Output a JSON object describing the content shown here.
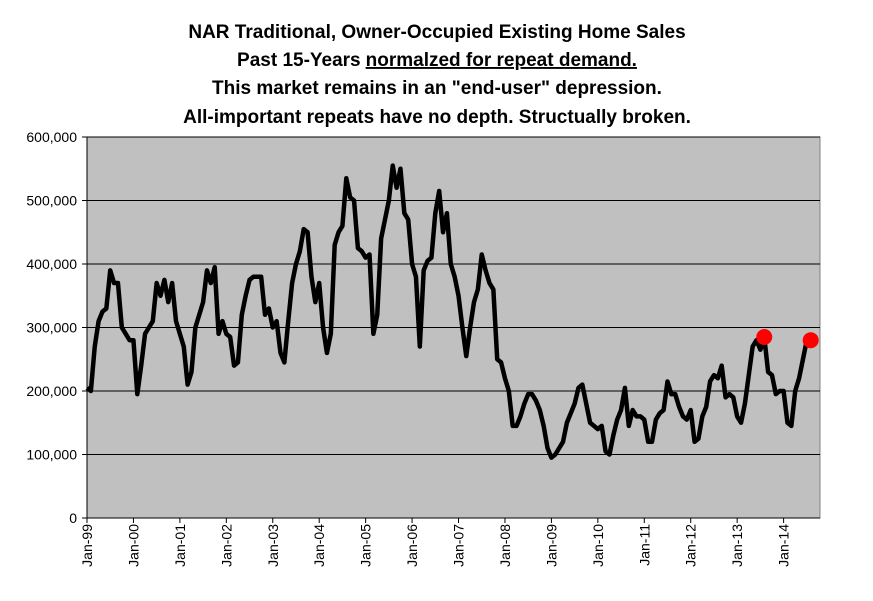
{
  "chart_data": {
    "type": "line",
    "title": [
      "NAR Traditional, Owner-Occupied Existing Home Sales",
      "Past 15-Years",
      "normalzed for repeat demand.",
      "This market remains in an \"end-user\" depression.",
      "All-important repeats have no depth. Structually broken."
    ],
    "categories": [
      "Jan-99",
      null,
      null,
      null,
      null,
      null,
      null,
      null,
      null,
      null,
      null,
      null,
      "Jan-00",
      null,
      null,
      null,
      null,
      null,
      null,
      null,
      null,
      null,
      null,
      null,
      "Jan-01",
      null,
      null,
      null,
      null,
      null,
      null,
      null,
      null,
      null,
      null,
      null,
      "Jan-02",
      null,
      null,
      null,
      null,
      null,
      null,
      null,
      null,
      null,
      null,
      null,
      "Jan-03",
      null,
      null,
      null,
      null,
      null,
      null,
      null,
      null,
      null,
      null,
      null,
      "Jan-04",
      null,
      null,
      null,
      null,
      null,
      null,
      null,
      null,
      null,
      null,
      null,
      "Jan-05",
      null,
      null,
      null,
      null,
      null,
      null,
      null,
      null,
      null,
      null,
      null,
      "Jan-06",
      null,
      null,
      null,
      null,
      null,
      null,
      null,
      null,
      null,
      null,
      null,
      "Jan-07",
      null,
      null,
      null,
      null,
      null,
      null,
      null,
      null,
      null,
      null,
      null,
      "Jan-08",
      null,
      null,
      null,
      null,
      null,
      null,
      null,
      null,
      null,
      null,
      null,
      "Jan-09",
      null,
      null,
      null,
      null,
      null,
      null,
      null,
      null,
      null,
      null,
      null,
      "Jan-10",
      null,
      null,
      null,
      null,
      null,
      null,
      null,
      null,
      null,
      null,
      null,
      "Jan-11",
      null,
      null,
      null,
      null,
      null,
      null,
      null,
      null,
      null,
      null,
      null,
      "Jan-12",
      null,
      null,
      null,
      null,
      null,
      null,
      null,
      null,
      null,
      null,
      null,
      "Jan-13",
      null,
      null,
      null,
      null,
      null,
      null,
      null,
      null,
      null,
      null,
      null,
      "Jan-14",
      null,
      null,
      null,
      null,
      null,
      null,
      null
    ],
    "series": [
      {
        "color": "#000000",
        "line": true,
        "values": [
          205000,
          200000,
          270000,
          310000,
          325000,
          330000,
          390000,
          370000,
          370000,
          300000,
          290000,
          280000,
          280000,
          195000,
          240000,
          290000,
          300000,
          310000,
          370000,
          350000,
          375000,
          340000,
          370000,
          310000,
          290000,
          270000,
          210000,
          230000,
          300000,
          320000,
          340000,
          390000,
          370000,
          395000,
          290000,
          310000,
          290000,
          285000,
          240000,
          245000,
          320000,
          350000,
          375000,
          380000,
          380000,
          380000,
          320000,
          330000,
          300000,
          310000,
          260000,
          245000,
          310000,
          370000,
          400000,
          420000,
          455000,
          450000,
          380000,
          340000,
          370000,
          300000,
          260000,
          290000,
          430000,
          450000,
          460000,
          535000,
          505000,
          500000,
          425000,
          420000,
          410000,
          415000,
          290000,
          320000,
          440000,
          470000,
          500000,
          555000,
          520000,
          550000,
          480000,
          470000,
          400000,
          380000,
          270000,
          390000,
          405000,
          410000,
          480000,
          515000,
          450000,
          480000,
          400000,
          380000,
          350000,
          300000,
          255000,
          300000,
          340000,
          360000,
          415000,
          390000,
          370000,
          360000,
          250000,
          245000,
          220000,
          200000,
          145000,
          145000,
          160000,
          180000,
          195000,
          195000,
          185000,
          170000,
          145000,
          110000,
          95000,
          100000,
          110000,
          120000,
          150000,
          165000,
          180000,
          205000,
          210000,
          180000,
          150000,
          145000,
          140000,
          145000,
          105000,
          100000,
          130000,
          155000,
          170000,
          205000,
          145000,
          170000,
          160000,
          160000,
          155000,
          120000,
          120000,
          155000,
          165000,
          170000,
          215000,
          195000,
          195000,
          175000,
          160000,
          155000,
          170000,
          120000,
          125000,
          160000,
          175000,
          215000,
          225000,
          220000,
          240000,
          190000,
          195000,
          190000,
          160000,
          150000,
          180000,
          225000,
          270000,
          280000,
          265000,
          285000,
          230000,
          225000,
          195000,
          200000,
          200000,
          150000,
          145000,
          200000,
          220000,
          250000,
          280000,
          280000
        ]
      },
      {
        "color": "#ff0000",
        "line": false,
        "values": [
          null,
          null,
          null,
          null,
          null,
          null,
          null,
          null,
          null,
          null,
          null,
          null,
          null,
          null,
          null,
          null,
          null,
          null,
          null,
          null,
          null,
          null,
          null,
          null,
          null,
          null,
          null,
          null,
          null,
          null,
          null,
          null,
          null,
          null,
          null,
          null,
          null,
          null,
          null,
          null,
          null,
          null,
          null,
          null,
          null,
          null,
          null,
          null,
          null,
          null,
          null,
          null,
          null,
          null,
          null,
          null,
          null,
          null,
          null,
          null,
          null,
          null,
          null,
          null,
          null,
          null,
          null,
          null,
          null,
          null,
          null,
          null,
          null,
          null,
          null,
          null,
          null,
          null,
          null,
          null,
          null,
          null,
          null,
          null,
          null,
          null,
          null,
          null,
          null,
          null,
          null,
          null,
          null,
          null,
          null,
          null,
          null,
          null,
          null,
          null,
          null,
          null,
          null,
          null,
          null,
          null,
          null,
          null,
          null,
          null,
          null,
          null,
          null,
          null,
          null,
          null,
          null,
          null,
          null,
          null,
          null,
          null,
          null,
          null,
          null,
          null,
          null,
          null,
          null,
          null,
          null,
          null,
          null,
          null,
          null,
          null,
          null,
          null,
          null,
          null,
          null,
          null,
          null,
          null,
          null,
          null,
          null,
          null,
          null,
          null,
          null,
          null,
          null,
          null,
          null,
          null,
          null,
          null,
          null,
          null,
          null,
          null,
          null,
          null,
          null,
          null,
          null,
          null,
          null,
          null,
          null,
          null,
          null,
          null,
          null,
          285000,
          null,
          null,
          null,
          null,
          null,
          null,
          null,
          null,
          null,
          null,
          null,
          280000
        ]
      }
    ],
    "ylim": [
      0,
      600000
    ],
    "yticks": [
      0,
      {
        "value": 100000,
        "label": "100,000"
      },
      {
        "value": 200000,
        "label": "200,000"
      },
      {
        "value": 300000,
        "label": "300,000"
      },
      {
        "value": 400000,
        "label": "400,000"
      },
      {
        "value": 500000,
        "label": "500,000"
      },
      {
        "value": 600000,
        "label": "600,000"
      }
    ],
    "grid": true,
    "background": "#c0c0c0"
  }
}
